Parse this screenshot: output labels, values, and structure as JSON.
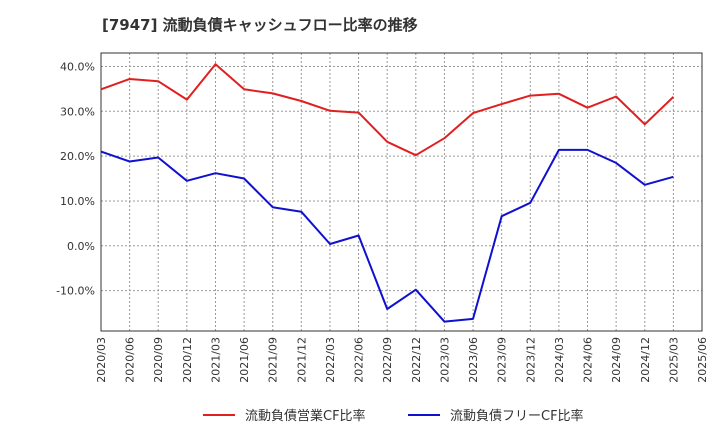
{
  "chart_data": {
    "type": "line",
    "title": "[7947]  流動負債キャッシュフロー比率の推移",
    "x": [
      "2020/03",
      "2020/06",
      "2020/09",
      "2020/12",
      "2021/03",
      "2021/06",
      "2021/09",
      "2021/12",
      "2022/03",
      "2022/06",
      "2022/09",
      "2022/12",
      "2023/03",
      "2023/06",
      "2023/09",
      "2023/12",
      "2024/03",
      "2024/06",
      "2024/09",
      "2024/12",
      "2025/03",
      "2025/06"
    ],
    "ylim": [
      -19,
      43
    ],
    "yticks": [
      -10,
      0,
      10,
      20,
      30,
      40
    ],
    "ytick_labels": [
      "-10.0%",
      "0.0%",
      "10.0%",
      "20.0%",
      "30.0%",
      "40.0%"
    ],
    "grid": true,
    "legend_position": "bottom",
    "series": [
      {
        "name": "流動負債営業CF比率",
        "color": "#e02020",
        "values": [
          34.9,
          37.2,
          36.7,
          32.6,
          40.5,
          34.9,
          34.0,
          32.3,
          30.1,
          29.7,
          23.2,
          20.2,
          24.0,
          29.6,
          31.6,
          33.5,
          33.9,
          30.8,
          33.3,
          27.1,
          33.2,
          null
        ]
      },
      {
        "name": "流動負債フリーCF比率",
        "color": "#1010d0",
        "values": [
          21.0,
          18.8,
          19.7,
          14.5,
          16.2,
          15.0,
          8.6,
          7.6,
          0.4,
          2.3,
          -14.1,
          -9.8,
          -16.9,
          -16.3,
          6.6,
          9.6,
          21.4,
          21.4,
          18.5,
          13.6,
          15.4,
          null
        ]
      }
    ]
  }
}
